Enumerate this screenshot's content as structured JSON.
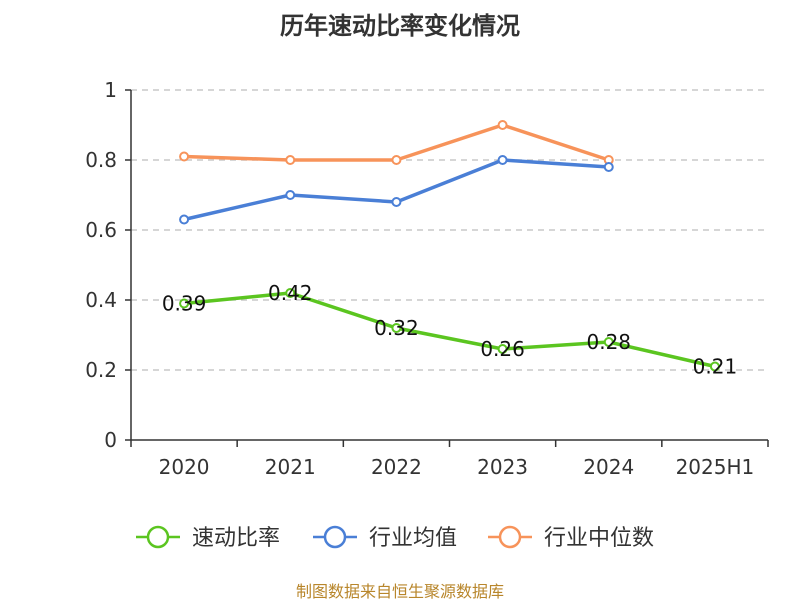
{
  "chart_data": {
    "type": "line",
    "title": "历年速动比率变化情况",
    "categories": [
      "2020",
      "2021",
      "2022",
      "2023",
      "2024",
      "2025H1"
    ],
    "ylim": [
      0,
      1
    ],
    "y_ticks": [
      "0",
      "0.2",
      "0.4",
      "0.6",
      "0.8",
      "1"
    ],
    "y_tick_values": [
      0,
      0.2,
      0.4,
      0.6,
      0.8,
      1
    ],
    "grid": true,
    "legend_position": "bottom",
    "series": [
      {
        "name": "速动比率",
        "color": "#5bc520",
        "values": [
          0.39,
          0.42,
          0.32,
          0.26,
          0.28,
          0.21
        ],
        "data_labels": [
          "0.39",
          "0.42",
          "0.32",
          "0.26",
          "0.28",
          "0.21"
        ]
      },
      {
        "name": "行业均值",
        "color": "#4a7fd6",
        "values": [
          0.63,
          0.7,
          0.68,
          0.8,
          0.78,
          null
        ]
      },
      {
        "name": "行业中位数",
        "color": "#f7935a",
        "values": [
          0.81,
          0.8,
          0.8,
          0.9,
          0.8,
          null
        ]
      }
    ]
  },
  "source": "制图数据来自恒生聚源数据库"
}
